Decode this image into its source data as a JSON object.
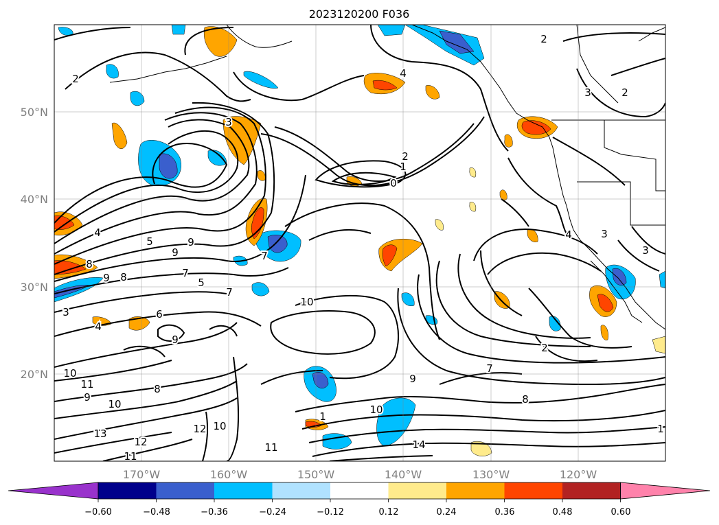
{
  "map": {
    "title": "2023120200 F036",
    "lat_labels": [
      "50°N",
      "40°N",
      "30°N",
      "20°N"
    ],
    "lon_labels": [
      "170°W",
      "160°W",
      "150°W",
      "140°W",
      "130°W",
      "120°W"
    ],
    "extent": {
      "lon": [
        -180,
        -110
      ],
      "lat": [
        10,
        60
      ]
    },
    "grid": true,
    "colorbar": {
      "ticks": [
        "−0.60",
        "−0.48",
        "−0.36",
        "−0.24",
        "−0.12",
        "0.12",
        "0.24",
        "0.36",
        "0.48",
        "0.60"
      ],
      "colors": [
        "#9932cc",
        "#00008b",
        "#3a5fcd",
        "#00bfff",
        "#b0e2ff",
        "#ffffff",
        "#ffeb8c",
        "#ffa500",
        "#ff4500",
        "#b22222",
        "#ff82ab"
      ],
      "extend": "both"
    },
    "contour_labels": [
      "2",
      "4",
      "2",
      "2",
      "3",
      "2",
      "1",
      "0",
      "4",
      "5",
      "9",
      "9",
      "8",
      "7",
      "5",
      "9",
      "8",
      "4",
      "3",
      "6",
      "9",
      "10",
      "11",
      "9",
      "10",
      "13",
      "12",
      "11",
      "7",
      "8",
      "10",
      "11",
      "12",
      "1",
      "10",
      "9",
      "8",
      "7",
      "2",
      "4",
      "3",
      "14",
      "10",
      "1",
      "3",
      "3",
      "7"
    ]
  }
}
